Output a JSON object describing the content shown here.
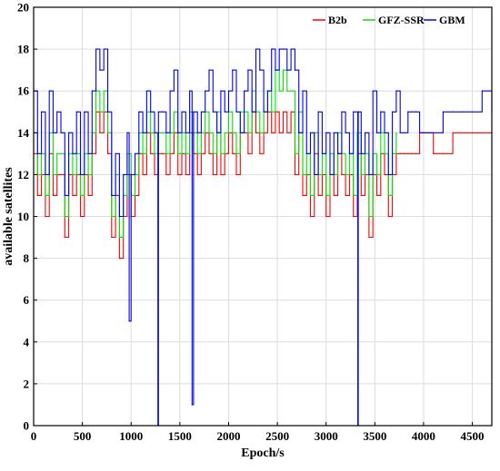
{
  "chart_data": {
    "type": "line",
    "title": "",
    "xlabel": "Epoch/s",
    "ylabel": "available satellites",
    "xlim": [
      0,
      4700
    ],
    "ylim": [
      0,
      20
    ],
    "xticks": [
      0,
      500,
      1000,
      1500,
      2000,
      2500,
      3000,
      3500,
      4000,
      4500
    ],
    "yticks": [
      0,
      2,
      4,
      6,
      8,
      10,
      12,
      14,
      16,
      18,
      20
    ],
    "xtick_labels": [
      "0",
      "500",
      "1000",
      "1500",
      "2000",
      "2500",
      "3000",
      "3500",
      "4000",
      "4500"
    ],
    "ytick_labels": [
      "0",
      "2",
      "4",
      "6",
      "8",
      "10",
      "12",
      "14",
      "16",
      "18",
      "20"
    ],
    "grid": true,
    "legend_position": "top-right",
    "series": [
      {
        "name": "B2b",
        "color": "#ff0000",
        "x": [
          0,
          40,
          80,
          120,
          160,
          200,
          240,
          280,
          320,
          360,
          400,
          440,
          480,
          520,
          560,
          600,
          640,
          680,
          720,
          760,
          800,
          840,
          880,
          920,
          960,
          1000,
          1040,
          1080,
          1120,
          1160,
          1200,
          1240,
          1280,
          1320,
          1360,
          1400,
          1440,
          1480,
          1520,
          1560,
          1600,
          1640,
          1680,
          1720,
          1760,
          1800,
          1840,
          1880,
          1920,
          1960,
          2000,
          2040,
          2080,
          2120,
          2160,
          2200,
          2240,
          2280,
          2320,
          2360,
          2400,
          2440,
          2480,
          2520,
          2560,
          2600,
          2640,
          2680,
          2720,
          2760,
          2800,
          2840,
          2880,
          2920,
          2960,
          3000,
          3040,
          3080,
          3120,
          3160,
          3200,
          3240,
          3280,
          3320,
          3360,
          3400,
          3440,
          3480,
          3520,
          3560,
          3600,
          3640,
          3680,
          3720,
          3760,
          3800,
          3840,
          3880,
          3920,
          3960,
          4000,
          4100,
          4200,
          4300,
          4400,
          4500,
          4600,
          4700
        ],
        "values": [
          13,
          11,
          12,
          10,
          13,
          11,
          12,
          12,
          9,
          12,
          11,
          12,
          10,
          12,
          11,
          13,
          15,
          14,
          15,
          13,
          9,
          11,
          8,
          10,
          12,
          10,
          11,
          13,
          12,
          14,
          13,
          12,
          13,
          13,
          12,
          13,
          14,
          12,
          13,
          12,
          14,
          13,
          12,
          13,
          14,
          13,
          12,
          14,
          12,
          13,
          14,
          13,
          12,
          14,
          14,
          13,
          15,
          14,
          13,
          14,
          15,
          14,
          15,
          14,
          15,
          14,
          15,
          12,
          14,
          11,
          12,
          10,
          13,
          11,
          12,
          10,
          12,
          11,
          13,
          12,
          11,
          12,
          10,
          13,
          11,
          12,
          9,
          12,
          11,
          13,
          12,
          10,
          12,
          13,
          13,
          13,
          13,
          13,
          13,
          14,
          14,
          13,
          13,
          14,
          14,
          14,
          14,
          14
        ]
      },
      {
        "name": "GFZ-SSR",
        "color": "#00e600",
        "x": [
          0,
          40,
          80,
          120,
          160,
          200,
          240,
          280,
          320,
          360,
          400,
          440,
          480,
          520,
          560,
          600,
          640,
          680,
          720,
          760,
          800,
          840,
          880,
          920,
          960,
          1000,
          1040,
          1080,
          1120,
          1160,
          1200,
          1240,
          1280,
          1320,
          1360,
          1400,
          1440,
          1480,
          1520,
          1560,
          1600,
          1640,
          1680,
          1720,
          1760,
          1800,
          1840,
          1880,
          1920,
          1960,
          2000,
          2040,
          2080,
          2120,
          2160,
          2200,
          2240,
          2280,
          2320,
          2360,
          2400,
          2440,
          2480,
          2520,
          2560,
          2600,
          2640,
          2680,
          2720,
          2760,
          2800,
          2840,
          2880,
          2920,
          2960,
          3000,
          3040,
          3080,
          3120,
          3160,
          3200,
          3240,
          3280,
          3320,
          3360,
          3400,
          3440,
          3480,
          3520,
          3560,
          3600,
          3640,
          3680,
          3720
        ],
        "values": [
          14,
          12,
          13,
          11,
          14,
          12,
          13,
          13,
          10,
          13,
          12,
          13,
          11,
          13,
          12,
          14,
          16,
          15,
          16,
          14,
          10,
          12,
          9,
          11,
          13,
          11,
          12,
          14,
          13,
          15,
          14,
          13,
          14,
          14,
          13,
          14,
          15,
          13,
          14,
          13,
          15,
          14,
          13,
          14,
          15,
          14,
          13,
          15,
          13,
          14,
          15,
          14,
          13,
          15,
          15,
          14,
          16,
          15,
          14,
          15,
          16,
          15,
          17,
          16,
          17,
          16,
          16,
          13,
          15,
          12,
          13,
          11,
          14,
          12,
          13,
          11,
          13,
          12,
          14,
          13,
          12,
          13,
          11,
          14,
          12,
          13,
          10,
          13,
          12,
          14,
          13,
          11,
          13,
          14
        ]
      },
      {
        "name": "GBM",
        "color": "#0000ff",
        "x": [
          0,
          40,
          80,
          120,
          160,
          200,
          240,
          280,
          320,
          360,
          400,
          440,
          480,
          520,
          560,
          600,
          640,
          680,
          720,
          760,
          800,
          840,
          880,
          920,
          960,
          980,
          1000,
          1040,
          1080,
          1120,
          1160,
          1200,
          1240,
          1275,
          1280,
          1320,
          1360,
          1400,
          1440,
          1480,
          1520,
          1560,
          1600,
          1625,
          1640,
          1680,
          1720,
          1760,
          1800,
          1840,
          1880,
          1920,
          1960,
          2000,
          2040,
          2080,
          2120,
          2160,
          2200,
          2240,
          2280,
          2320,
          2360,
          2400,
          2440,
          2480,
          2520,
          2560,
          2600,
          2640,
          2680,
          2720,
          2760,
          2800,
          2840,
          2880,
          2920,
          2960,
          3000,
          3040,
          3080,
          3120,
          3160,
          3200,
          3240,
          3280,
          3325,
          3330,
          3360,
          3400,
          3440,
          3480,
          3520,
          3560,
          3600,
          3640,
          3680,
          3720,
          3760,
          3800,
          3840,
          3880,
          3920,
          3960,
          4000,
          4100,
          4200,
          4300,
          4400,
          4500,
          4600,
          4700
        ],
        "values": [
          16,
          13,
          15,
          12,
          16,
          14,
          15,
          14,
          11,
          14,
          13,
          15,
          12,
          15,
          13,
          16,
          18,
          17,
          18,
          15,
          11,
          13,
          10,
          12,
          14,
          5,
          12,
          13,
          15,
          14,
          16,
          15,
          14,
          0,
          15,
          15,
          14,
          16,
          17,
          14,
          15,
          14,
          16,
          1,
          15,
          14,
          15,
          16,
          17,
          15,
          14,
          16,
          15,
          16,
          17,
          15,
          14,
          16,
          17,
          15,
          18,
          17,
          15,
          16,
          18,
          17,
          18,
          18,
          17,
          18,
          17,
          14,
          16,
          13,
          14,
          12,
          15,
          13,
          14,
          12,
          14,
          13,
          15,
          14,
          13,
          15,
          0,
          15,
          13,
          14,
          12,
          16,
          14,
          15,
          14,
          12,
          15,
          16,
          14,
          14,
          15,
          15,
          15,
          14,
          14,
          14,
          15,
          15,
          15,
          15,
          16,
          15
        ]
      }
    ]
  }
}
